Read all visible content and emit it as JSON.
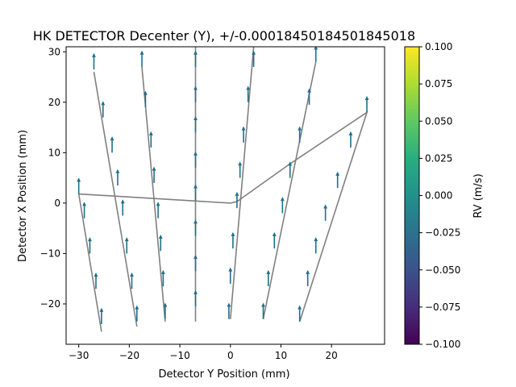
{
  "chart_data": {
    "type": "scatter",
    "title": "HK DETECTOR Decenter (Y), +/-0.00018450184501845018",
    "xlabel": "Detector Y Position (mm)",
    "ylabel": "Detector X Position (mm)",
    "xlim": [
      -32.5,
      30.5
    ],
    "ylim": [
      -28.0,
      31.0
    ],
    "x_ticks": [
      -30,
      -20,
      -10,
      0,
      10,
      20
    ],
    "y_ticks": [
      -20,
      -10,
      0,
      10,
      20,
      30
    ],
    "grid": false,
    "colorbar": {
      "label": "RV (m/s)",
      "range": [
        -0.1,
        0.1
      ],
      "ticks": [
        0.1,
        0.075,
        0.05,
        0.025,
        0.0,
        -0.025,
        -0.05,
        -0.075,
        -0.1
      ],
      "tick_labels": [
        "0.100",
        "0.075",
        "0.050",
        "0.025",
        "0.000",
        "−0.025",
        "−0.050",
        "−0.075",
        "−0.100"
      ],
      "colormap": "viridis"
    },
    "arrow_color": "#1f6f8b",
    "outline_color": "#808080",
    "points": [
      [
        -30.0,
        1.8
      ],
      [
        -28.9,
        -3.0
      ],
      [
        -27.8,
        -10.0
      ],
      [
        -26.6,
        -17.0
      ],
      [
        -25.5,
        -24.0
      ],
      [
        -27.0,
        26.5
      ],
      [
        -25.2,
        17.0
      ],
      [
        -23.4,
        10.0
      ],
      [
        -22.3,
        3.5
      ],
      [
        -21.3,
        -2.5
      ],
      [
        -20.5,
        -10.0
      ],
      [
        -19.5,
        -17.0
      ],
      [
        -18.5,
        -23.5
      ],
      [
        -17.5,
        27.0
      ],
      [
        -16.8,
        19.0
      ],
      [
        -15.7,
        11.0
      ],
      [
        -15.1,
        4.0
      ],
      [
        -14.3,
        -3.0
      ],
      [
        -13.8,
        -9.5
      ],
      [
        -13.3,
        -16.5
      ],
      [
        -12.9,
        -23.0
      ],
      [
        -6.9,
        27.0
      ],
      [
        -6.9,
        20.0
      ],
      [
        -6.9,
        14.0
      ],
      [
        -6.9,
        7.0
      ],
      [
        -6.9,
        0.5
      ],
      [
        -6.9,
        -6.5
      ],
      [
        -6.9,
        -13.5
      ],
      [
        -6.9,
        -20.5
      ],
      [
        4.6,
        27.0
      ],
      [
        3.5,
        20.0
      ],
      [
        2.6,
        12.0
      ],
      [
        1.9,
        5.0
      ],
      [
        1.3,
        -1.0
      ],
      [
        0.5,
        -9.0
      ],
      [
        0.0,
        -16.0
      ],
      [
        -0.3,
        -23.0
      ],
      [
        16.9,
        28.0
      ],
      [
        15.6,
        19.5
      ],
      [
        13.7,
        12.0
      ],
      [
        11.8,
        5.0
      ],
      [
        10.3,
        -2.0
      ],
      [
        8.7,
        -9.0
      ],
      [
        7.5,
        -16.5
      ],
      [
        6.5,
        -23.0
      ],
      [
        27.0,
        18.0
      ],
      [
        23.8,
        11.0
      ],
      [
        21.2,
        3.0
      ],
      [
        18.8,
        -3.5
      ],
      [
        16.9,
        -10.0
      ],
      [
        15.3,
        -16.5
      ],
      [
        13.7,
        -23.5
      ]
    ],
    "arrow_length": 3.0,
    "outline_lines": [
      [
        [
          -30.0,
          1.8
        ],
        [
          0.0,
          0.0
        ],
        [
          1.3,
          0.3
        ],
        [
          11.8,
          7.8
        ],
        [
          27.0,
          18.0
        ],
        [
          13.7,
          -23.5
        ]
      ],
      [
        [
          -30.0,
          1.8
        ],
        [
          -25.5,
          -25.5
        ]
      ],
      [
        [
          -27.0,
          26.0
        ],
        [
          -18.5,
          -24.5
        ]
      ],
      [
        [
          -17.5,
          27.0
        ],
        [
          -12.9,
          -23.5
        ]
      ],
      [
        [
          -6.9,
          31.0
        ],
        [
          -6.9,
          -23.5
        ]
      ],
      [
        [
          4.6,
          31.0
        ],
        [
          0.0,
          -23.0
        ]
      ],
      [
        [
          16.9,
          28.0
        ],
        [
          6.5,
          -23.0
        ]
      ]
    ]
  }
}
